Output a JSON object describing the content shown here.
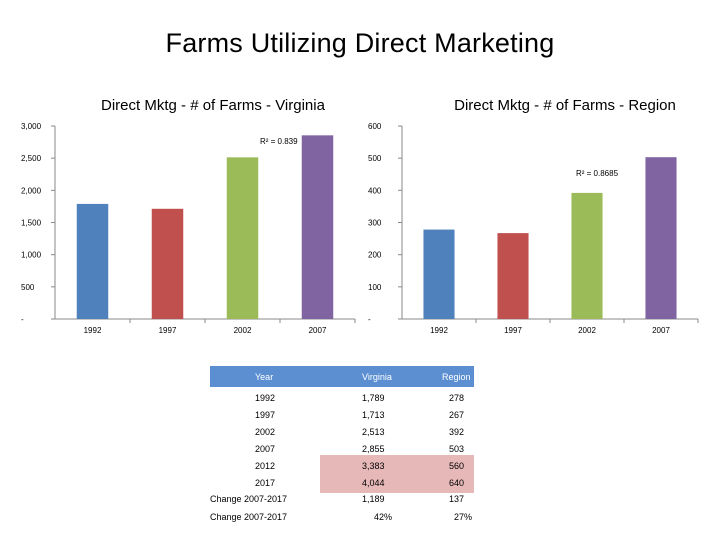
{
  "page_title": "Farms Utilizing Direct Marketing",
  "chart_data": [
    {
      "type": "bar",
      "title": "Direct Mktg - # of Farms - Virginia",
      "categories": [
        "1992",
        "1997",
        "2002",
        "2007"
      ],
      "values": [
        1789,
        1713,
        2513,
        2855
      ],
      "ylim": [
        0,
        3000
      ],
      "yticks": [
        {
          "value": 0,
          "label": "-"
        },
        {
          "value": 500,
          "label": "500"
        },
        {
          "value": 1000,
          "label": "1,000"
        },
        {
          "value": 1500,
          "label": "1,500"
        },
        {
          "value": 2000,
          "label": "2,000"
        },
        {
          "value": 2500,
          "label": "2,500"
        },
        {
          "value": 3000,
          "label": "3,000"
        }
      ],
      "bar_colors": [
        "#4f81bd",
        "#c0504d",
        "#9bbb59",
        "#8064a2"
      ],
      "grid": false,
      "annotation": "R² = 0.839",
      "xlabel": "",
      "ylabel": ""
    },
    {
      "type": "bar",
      "title": "Direct Mktg - # of Farms - Region",
      "categories": [
        "1992",
        "1997",
        "2002",
        "2007"
      ],
      "values": [
        278,
        267,
        392,
        503
      ],
      "ylim": [
        0,
        600
      ],
      "yticks": [
        {
          "value": 0,
          "label": "-"
        },
        {
          "value": 100,
          "label": "100"
        },
        {
          "value": 200,
          "label": "200"
        },
        {
          "value": 300,
          "label": "300"
        },
        {
          "value": 400,
          "label": "400"
        },
        {
          "value": 500,
          "label": "500"
        },
        {
          "value": 600,
          "label": "600"
        }
      ],
      "bar_colors": [
        "#4f81bd",
        "#c0504d",
        "#9bbb59",
        "#8064a2"
      ],
      "grid": false,
      "annotation": "R² = 0.8685",
      "xlabel": "",
      "ylabel": ""
    }
  ],
  "table": {
    "headers": [
      "Year",
      "Virginia",
      "Region"
    ],
    "header_color": "#5b8fd2",
    "highlight_color": "#e6b9b8",
    "rows": [
      [
        "1992",
        "1,789",
        "278"
      ],
      [
        "1997",
        "1,713",
        "267"
      ],
      [
        "2002",
        "2,513",
        "392"
      ],
      [
        "2007",
        "2,855",
        "503"
      ],
      [
        "2012",
        "3,383",
        "560"
      ],
      [
        "2017",
        "4,044",
        "640"
      ],
      [
        "Change 2007-2017",
        "1,189",
        "137"
      ],
      [
        "Change 2007-2017",
        "42%",
        "27%"
      ]
    ]
  }
}
